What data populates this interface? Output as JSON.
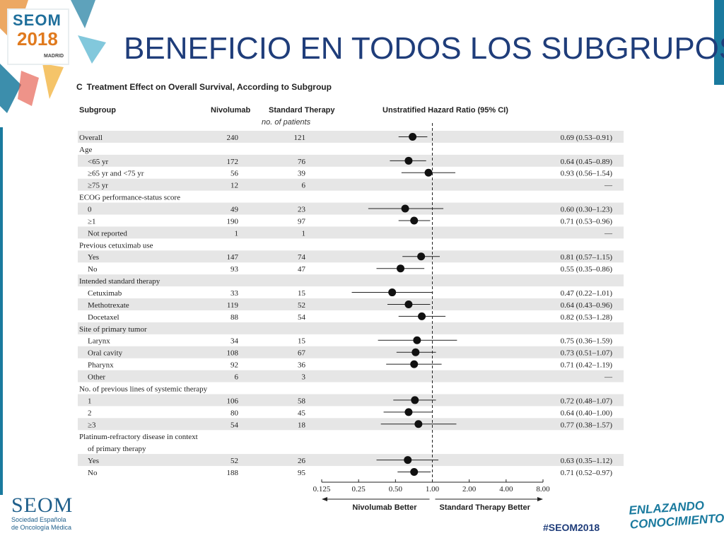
{
  "slide": {
    "title": "BENEFICIO EN TODOS LOS SUBGRUPOS",
    "logo_text": "SEOM",
    "logo_year": "2018",
    "logo_city": "MADRID",
    "footer_org_name": "SEOM",
    "footer_org_line1": "Sociedad Española",
    "footer_org_line2": "de Oncología Médica",
    "hashtag": "#SEOM2018",
    "tagline_line1": "ENLAZANDO",
    "tagline_line2": "CONOCIMIENTO"
  },
  "panel": {
    "letter": "C",
    "caption": "Treatment Effect on Overall Survival, According to Subgroup",
    "header_subgroup": "Subgroup",
    "header_arm1": "Nivolumab",
    "header_arm2": "Standard Therapy",
    "header_hr": "Unstratified Hazard Ratio (95% CI)",
    "subheader": "no. of patients",
    "favors_left": "Nivolumab Better",
    "favors_right": "Standard Therapy Better"
  },
  "chart_data": {
    "type": "forest",
    "title": "Treatment Effect on Overall Survival, According to Subgroup",
    "xscale": "log2",
    "xlim": [
      0.125,
      8.0
    ],
    "xticks": [
      "0.125",
      "0.25",
      "0.50",
      "1.00",
      "2.00",
      "4.00",
      "8.00"
    ],
    "xtick_values": [
      0.125,
      0.25,
      0.5,
      1.0,
      2.0,
      4.0,
      8.0
    ],
    "reference_line": 1.0,
    "rows": [
      {
        "label": "Overall",
        "indent": 0,
        "shaded": true,
        "n1": "240",
        "n2": "121",
        "hr": 0.69,
        "lo": 0.53,
        "hi": 0.91,
        "text": "0.69 (0.53–0.91)"
      },
      {
        "label": "Age",
        "indent": 0,
        "shaded": false,
        "n1": "",
        "n2": "",
        "hr": null,
        "lo": null,
        "hi": null,
        "text": ""
      },
      {
        "label": "<65 yr",
        "indent": 1,
        "shaded": true,
        "n1": "172",
        "n2": "76",
        "hr": 0.64,
        "lo": 0.45,
        "hi": 0.89,
        "text": "0.64 (0.45–0.89)"
      },
      {
        "label": "≥65 yr and <75 yr",
        "indent": 1,
        "shaded": false,
        "n1": "56",
        "n2": "39",
        "hr": 0.93,
        "lo": 0.56,
        "hi": 1.54,
        "text": "0.93 (0.56–1.54)"
      },
      {
        "label": "≥75 yr",
        "indent": 1,
        "shaded": true,
        "n1": "12",
        "n2": "6",
        "hr": null,
        "lo": null,
        "hi": null,
        "text": "—"
      },
      {
        "label": "ECOG performance-status score",
        "indent": 0,
        "shaded": false,
        "n1": "",
        "n2": "",
        "hr": null,
        "lo": null,
        "hi": null,
        "text": ""
      },
      {
        "label": "0",
        "indent": 1,
        "shaded": true,
        "n1": "49",
        "n2": "23",
        "hr": 0.6,
        "lo": 0.3,
        "hi": 1.23,
        "text": "0.60 (0.30–1.23)"
      },
      {
        "label": "≥1",
        "indent": 1,
        "shaded": false,
        "n1": "190",
        "n2": "97",
        "hr": 0.71,
        "lo": 0.53,
        "hi": 0.96,
        "text": "0.71 (0.53–0.96)"
      },
      {
        "label": "Not reported",
        "indent": 1,
        "shaded": true,
        "n1": "1",
        "n2": "1",
        "hr": null,
        "lo": null,
        "hi": null,
        "text": "—"
      },
      {
        "label": "Previous cetuximab use",
        "indent": 0,
        "shaded": false,
        "n1": "",
        "n2": "",
        "hr": null,
        "lo": null,
        "hi": null,
        "text": ""
      },
      {
        "label": "Yes",
        "indent": 1,
        "shaded": true,
        "n1": "147",
        "n2": "74",
        "hr": 0.81,
        "lo": 0.57,
        "hi": 1.15,
        "text": "0.81 (0.57–1.15)"
      },
      {
        "label": "No",
        "indent": 1,
        "shaded": false,
        "n1": "93",
        "n2": "47",
        "hr": 0.55,
        "lo": 0.35,
        "hi": 0.86,
        "text": "0.55 (0.35–0.86)"
      },
      {
        "label": "Intended standard therapy",
        "indent": 0,
        "shaded": true,
        "n1": "",
        "n2": "",
        "hr": null,
        "lo": null,
        "hi": null,
        "text": ""
      },
      {
        "label": "Cetuximab",
        "indent": 1,
        "shaded": false,
        "n1": "33",
        "n2": "15",
        "hr": 0.47,
        "lo": 0.22,
        "hi": 1.01,
        "text": "0.47 (0.22–1.01)"
      },
      {
        "label": "Methotrexate",
        "indent": 1,
        "shaded": true,
        "n1": "119",
        "n2": "52",
        "hr": 0.64,
        "lo": 0.43,
        "hi": 0.96,
        "text": "0.64 (0.43–0.96)"
      },
      {
        "label": "Docetaxel",
        "indent": 1,
        "shaded": false,
        "n1": "88",
        "n2": "54",
        "hr": 0.82,
        "lo": 0.53,
        "hi": 1.28,
        "text": "0.82 (0.53–1.28)"
      },
      {
        "label": "Site of primary tumor",
        "indent": 0,
        "shaded": true,
        "n1": "",
        "n2": "",
        "hr": null,
        "lo": null,
        "hi": null,
        "text": ""
      },
      {
        "label": "Larynx",
        "indent": 1,
        "shaded": false,
        "n1": "34",
        "n2": "15",
        "hr": 0.75,
        "lo": 0.36,
        "hi": 1.59,
        "text": "0.75 (0.36–1.59)"
      },
      {
        "label": "Oral cavity",
        "indent": 1,
        "shaded": true,
        "n1": "108",
        "n2": "67",
        "hr": 0.73,
        "lo": 0.51,
        "hi": 1.07,
        "text": "0.73 (0.51–1.07)"
      },
      {
        "label": "Pharynx",
        "indent": 1,
        "shaded": false,
        "n1": "92",
        "n2": "36",
        "hr": 0.71,
        "lo": 0.42,
        "hi": 1.19,
        "text": "0.71 (0.42–1.19)"
      },
      {
        "label": "Other",
        "indent": 1,
        "shaded": true,
        "n1": "6",
        "n2": "3",
        "hr": null,
        "lo": null,
        "hi": null,
        "text": "—"
      },
      {
        "label": "No. of previous lines of systemic therapy",
        "indent": 0,
        "shaded": false,
        "n1": "",
        "n2": "",
        "hr": null,
        "lo": null,
        "hi": null,
        "text": ""
      },
      {
        "label": "1",
        "indent": 1,
        "shaded": true,
        "n1": "106",
        "n2": "58",
        "hr": 0.72,
        "lo": 0.48,
        "hi": 1.07,
        "text": "0.72 (0.48–1.07)"
      },
      {
        "label": "2",
        "indent": 1,
        "shaded": false,
        "n1": "80",
        "n2": "45",
        "hr": 0.64,
        "lo": 0.4,
        "hi": 1.0,
        "text": "0.64 (0.40–1.00)"
      },
      {
        "label": "≥3",
        "indent": 1,
        "shaded": true,
        "n1": "54",
        "n2": "18",
        "hr": 0.77,
        "lo": 0.38,
        "hi": 1.57,
        "text": "0.77 (0.38–1.57)"
      },
      {
        "label": "Platinum-refractory disease in context",
        "indent": 0,
        "shaded": false,
        "n1": "",
        "n2": "",
        "hr": null,
        "lo": null,
        "hi": null,
        "text": ""
      },
      {
        "label": "of primary therapy",
        "indent": 1,
        "shaded": false,
        "n1": "",
        "n2": "",
        "hr": null,
        "lo": null,
        "hi": null,
        "text": ""
      },
      {
        "label": "Yes",
        "indent": 1,
        "shaded": true,
        "n1": "52",
        "n2": "26",
        "hr": 0.63,
        "lo": 0.35,
        "hi": 1.12,
        "text": "0.63 (0.35–1.12)"
      },
      {
        "label": "No",
        "indent": 1,
        "shaded": false,
        "n1": "188",
        "n2": "95",
        "hr": 0.71,
        "lo": 0.52,
        "hi": 0.97,
        "text": "0.71 (0.52–0.97)"
      }
    ]
  },
  "colors": {
    "title": "#1f3d7a",
    "accent": "#1a7a9e",
    "shade": "#e6e6e6",
    "ink": "#222222"
  }
}
